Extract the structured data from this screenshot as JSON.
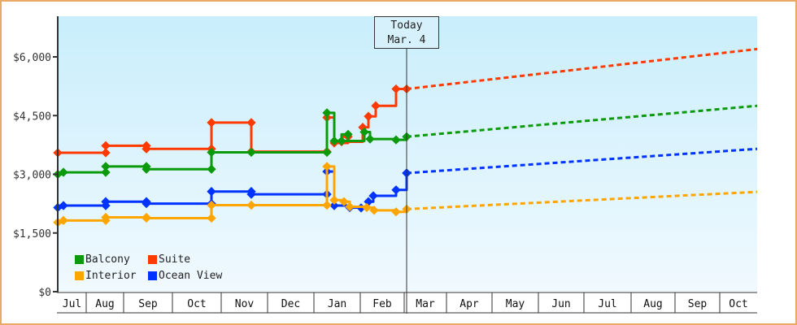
{
  "today_marker": {
    "line1": "Today",
    "line2": "Mar. 4"
  },
  "legend": [
    {
      "name": "Balcony",
      "color": "#0b9a0b"
    },
    {
      "name": "Suite",
      "color": "#ff3a00"
    },
    {
      "name": "Interior",
      "color": "#ffa500"
    },
    {
      "name": "Ocean View",
      "color": "#0033ff"
    }
  ],
  "y_ticks": [
    "$6,000",
    "$4,500",
    "$3,000",
    "$1,500",
    "$0"
  ],
  "months": [
    "Jul",
    "Aug",
    "Sep",
    "Oct",
    "Nov",
    "Dec",
    "Jan",
    "Feb",
    "Mar",
    "Apr",
    "May",
    "Jun",
    "Jul",
    "Aug",
    "Sep",
    "Oct"
  ],
  "chart_data": {
    "type": "line",
    "title": "",
    "xlabel": "",
    "ylabel": "",
    "ylim": [
      0,
      7000
    ],
    "y_ticks": [
      0,
      1500,
      3000,
      4500,
      6000
    ],
    "x_ticks": [
      "Jul",
      "Aug",
      "Sep",
      "Oct",
      "Nov",
      "Dec",
      "Jan",
      "Feb",
      "Mar",
      "Apr",
      "May",
      "Jun",
      "Jul",
      "Aug",
      "Sep",
      "Oct"
    ],
    "annotation": "Today Mar. 4",
    "legend_position": "bottom-left inside",
    "grid": false,
    "series": [
      {
        "name": "Suite",
        "color": "#ff3a00",
        "historical": [
          [
            "Jul",
            3550
          ],
          [
            "Aug",
            3550
          ],
          [
            "Aug",
            3730
          ],
          [
            "Sep",
            3730
          ],
          [
            "Sep",
            3650
          ],
          [
            "Oct",
            3650
          ],
          [
            "Oct",
            4320
          ],
          [
            "Nov",
            4320
          ],
          [
            "Nov",
            3580
          ],
          [
            "Jan",
            3580
          ],
          [
            "Jan",
            4450
          ],
          [
            "Jan",
            3800
          ],
          [
            "Jan",
            3960
          ],
          [
            "Jan",
            3830
          ],
          [
            "Feb",
            4200
          ],
          [
            "Feb",
            4480
          ],
          [
            "Feb",
            4750
          ],
          [
            "Feb",
            5180
          ],
          [
            "Mar 4",
            5180
          ]
        ],
        "forecast": [
          [
            "Mar 4",
            5180
          ],
          [
            "Oct",
            6200
          ]
        ]
      },
      {
        "name": "Balcony",
        "color": "#0b9a0b",
        "historical": [
          [
            "Jul",
            3000
          ],
          [
            "Jul",
            3050
          ],
          [
            "Aug",
            3050
          ],
          [
            "Aug",
            3200
          ],
          [
            "Sep",
            3200
          ],
          [
            "Sep",
            3130
          ],
          [
            "Oct",
            3130
          ],
          [
            "Oct",
            3560
          ],
          [
            "Nov",
            3560
          ],
          [
            "Jan",
            3560
          ],
          [
            "Jan",
            4570
          ],
          [
            "Jan",
            3850
          ],
          [
            "Jan",
            4020
          ],
          [
            "Jan",
            3850
          ],
          [
            "Feb",
            4080
          ],
          [
            "Feb",
            3900
          ],
          [
            "Feb",
            3880
          ],
          [
            "Mar 4",
            3960
          ]
        ],
        "forecast": [
          [
            "Mar 4",
            3960
          ],
          [
            "Oct",
            4750
          ]
        ]
      },
      {
        "name": "Ocean View",
        "color": "#0033ff",
        "historical": [
          [
            "Jul",
            2150
          ],
          [
            "Jul",
            2200
          ],
          [
            "Aug",
            2200
          ],
          [
            "Aug",
            2300
          ],
          [
            "Sep",
            2300
          ],
          [
            "Sep",
            2250
          ],
          [
            "Oct",
            2250
          ],
          [
            "Oct",
            2560
          ],
          [
            "Nov",
            2560
          ],
          [
            "Nov",
            2490
          ],
          [
            "Jan",
            2490
          ],
          [
            "Jan",
            3070
          ],
          [
            "Jan",
            2200
          ],
          [
            "Jan",
            2150
          ],
          [
            "Jan",
            2140
          ],
          [
            "Feb",
            2300
          ],
          [
            "Feb",
            2450
          ],
          [
            "Feb",
            2600
          ],
          [
            "Feb",
            3030
          ],
          [
            "Mar 4",
            3030
          ]
        ],
        "forecast": [
          [
            "Mar 4",
            3030
          ],
          [
            "Oct",
            3650
          ]
        ]
      },
      {
        "name": "Interior",
        "color": "#ffa500",
        "historical": [
          [
            "Jul",
            1770
          ],
          [
            "Jul",
            1820
          ],
          [
            "Aug",
            1820
          ],
          [
            "Aug",
            1900
          ],
          [
            "Sep",
            1900
          ],
          [
            "Sep",
            1880
          ],
          [
            "Oct",
            1880
          ],
          [
            "Oct",
            2210
          ],
          [
            "Nov",
            2210
          ],
          [
            "Jan",
            2210
          ],
          [
            "Jan",
            3200
          ],
          [
            "Jan",
            2340
          ],
          [
            "Jan",
            2300
          ],
          [
            "Jan",
            2170
          ],
          [
            "Feb",
            2150
          ],
          [
            "Feb",
            2080
          ],
          [
            "Feb",
            2040
          ],
          [
            "Mar 4",
            2110
          ]
        ],
        "forecast": [
          [
            "Mar 4",
            2110
          ],
          [
            "Oct",
            2550
          ]
        ]
      }
    ]
  }
}
